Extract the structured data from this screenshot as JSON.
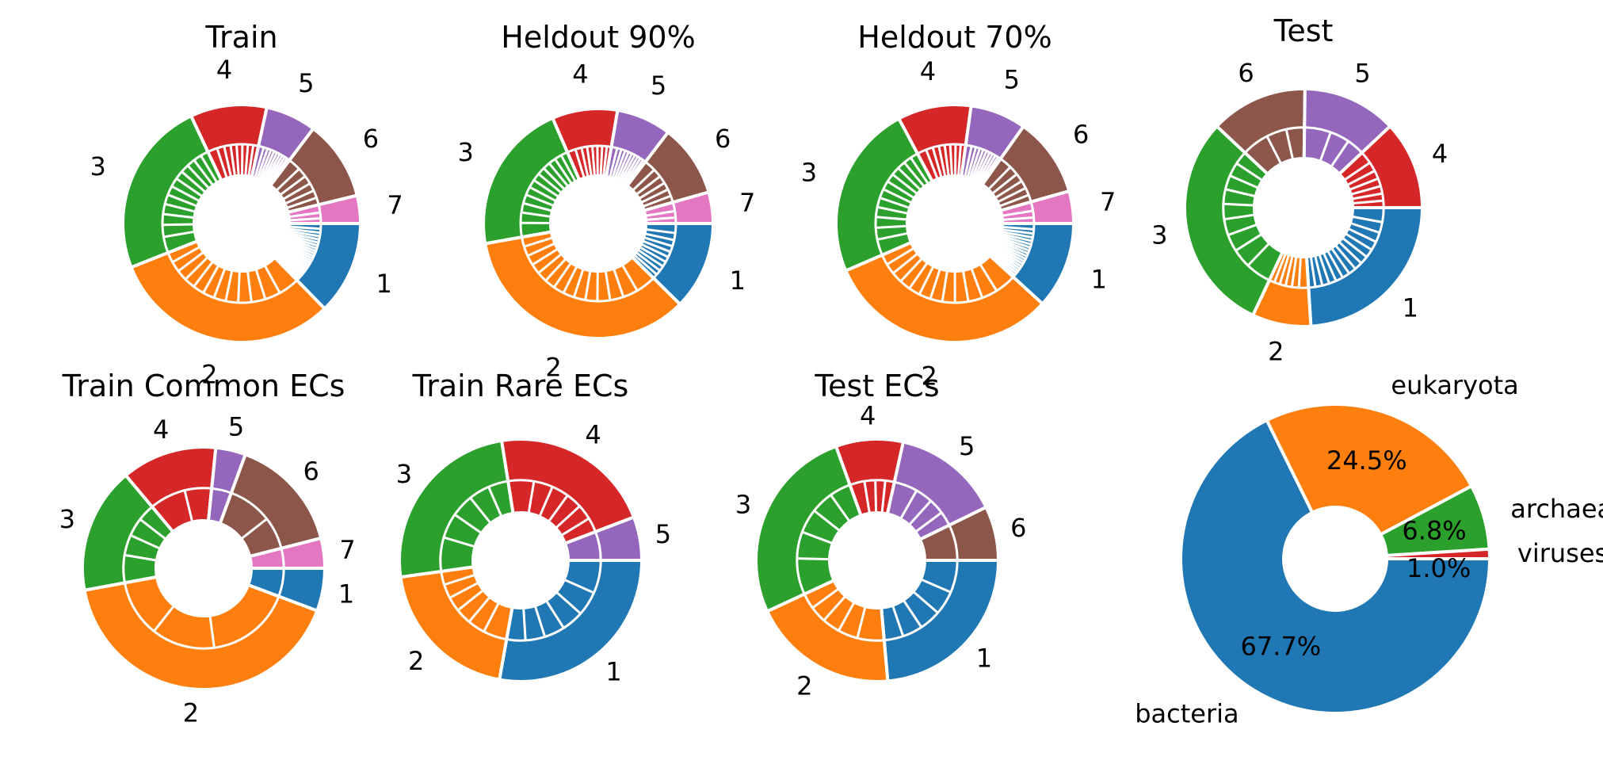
{
  "colors": {
    "1": "#1f77b4",
    "2": "#ff7f0e",
    "3": "#2ca02c",
    "4": "#d62728",
    "5": "#9467bd",
    "6": "#8c564b",
    "7": "#e377c2",
    "bacteria": "#1f77b4",
    "eukaryota": "#ff7f0e",
    "archaea": "#2ca02c",
    "viruses": "#d62728"
  },
  "chart_data": [
    {
      "type": "pie",
      "variant": "nested-donut",
      "title": "Train",
      "categories": [
        "1",
        "2",
        "3",
        "4",
        "5",
        "6",
        "7"
      ],
      "values": [
        12.7,
        31.3,
        24.0,
        10.4,
        6.9,
        10.9,
        3.8
      ],
      "sub_divisions": [
        22,
        12,
        12,
        8,
        10,
        6,
        3
      ]
    },
    {
      "type": "pie",
      "variant": "nested-donut",
      "title": "Heldout 90%",
      "categories": [
        "1",
        "2",
        "3",
        "4",
        "5",
        "6",
        "7"
      ],
      "values": [
        12.4,
        34.8,
        21.3,
        9.2,
        7.7,
        10.2,
        4.4
      ],
      "sub_divisions": [
        10,
        14,
        12,
        8,
        10,
        6,
        3
      ]
    },
    {
      "type": "pie",
      "variant": "nested-donut",
      "title": "Heldout 70%",
      "categories": [
        "1",
        "2",
        "3",
        "4",
        "5",
        "6",
        "7"
      ],
      "values": [
        11.8,
        31.7,
        23.7,
        10.0,
        7.6,
        10.8,
        4.4
      ],
      "sub_divisions": [
        18,
        12,
        12,
        8,
        10,
        6,
        3
      ]
    },
    {
      "type": "pie",
      "variant": "nested-donut",
      "title": "Test",
      "categories": [
        "1",
        "2",
        "3",
        "6",
        "5",
        "4"
      ],
      "values": [
        24.0,
        8.0,
        30.0,
        13.2,
        12.8,
        12.0
      ],
      "sub_divisions": [
        14,
        6,
        9,
        3,
        3,
        7
      ]
    },
    {
      "type": "pie",
      "variant": "nested-donut",
      "title": "Train Common ECs",
      "categories": [
        "1",
        "2",
        "3",
        "4",
        "5",
        "6",
        "7"
      ],
      "values": [
        5.7,
        41.4,
        16.8,
        12.7,
        4.0,
        15.4,
        4.0
      ],
      "sub_divisions": [
        1,
        3,
        4,
        2,
        1,
        2,
        1
      ]
    },
    {
      "type": "pie",
      "variant": "nested-donut",
      "title": "Train Rare ECs",
      "categories": [
        "1",
        "2",
        "3",
        "4",
        "5"
      ],
      "values": [
        27.8,
        20.0,
        24.7,
        21.7,
        5.8
      ],
      "sub_divisions": [
        6,
        6,
        5,
        6,
        1
      ]
    },
    {
      "type": "pie",
      "variant": "nested-donut",
      "title": "Test ECs",
      "categories": [
        "1",
        "2",
        "3",
        "4",
        "5",
        "6"
      ],
      "values": [
        22.9,
        18.9,
        25.6,
        8.7,
        13.9,
        7.0
      ],
      "sub_divisions": [
        5,
        5,
        5,
        4,
        4,
        1
      ]
    },
    {
      "type": "pie",
      "variant": "donut",
      "title": "",
      "categories": [
        "bacteria",
        "eukaryota",
        "archaea",
        "viruses"
      ],
      "values": [
        67.7,
        24.5,
        6.8,
        1.0
      ],
      "data_labels": [
        "67.7%",
        "24.5%",
        "6.8%",
        "1.0%"
      ]
    }
  ]
}
